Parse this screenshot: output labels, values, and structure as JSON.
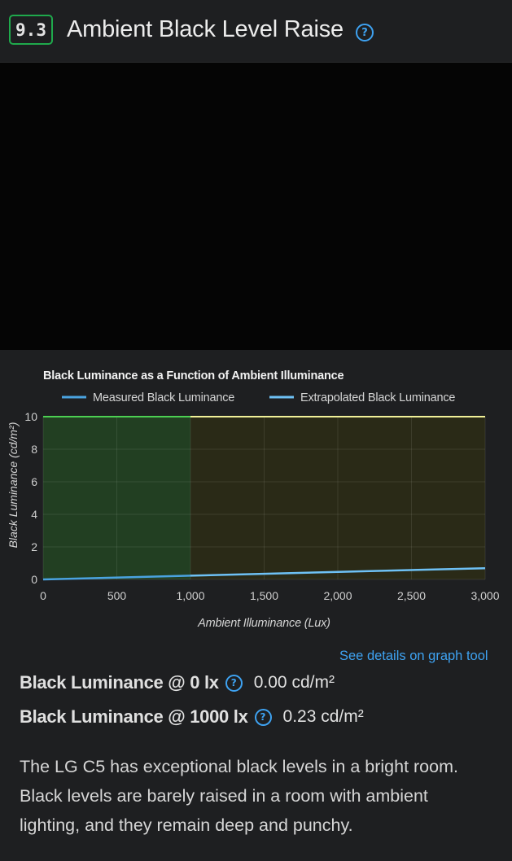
{
  "header": {
    "score": "9.3",
    "title": "Ambient Black Level Raise",
    "help_glyph": "?"
  },
  "chart_data": {
    "type": "line",
    "title": "Black Luminance as a Function of Ambient Illuminance",
    "xlabel": "Ambient Illuminance (Lux)",
    "ylabel": "Black Luminance (cd/m²)",
    "xlim": [
      0,
      3000
    ],
    "ylim": [
      0,
      10
    ],
    "x_ticks": [
      0,
      500,
      1000,
      1500,
      2000,
      2500,
      3000
    ],
    "x_tick_labels": [
      "0",
      "500",
      "1,000",
      "1,500",
      "2,000",
      "2,500",
      "3,000"
    ],
    "y_ticks": [
      0,
      2,
      4,
      6,
      8,
      10
    ],
    "y_tick_labels": [
      "0",
      "2",
      "4",
      "6",
      "8",
      "10"
    ],
    "grid": true,
    "legend_position": "top",
    "series": [
      {
        "name": "Measured Black Luminance",
        "color": "#4aa3e0",
        "x": [
          0,
          1000
        ],
        "y": [
          0.0,
          0.23
        ]
      },
      {
        "name": "Extrapolated Black Luminance",
        "color": "#6ec1f5",
        "x": [
          1000,
          3000
        ],
        "y": [
          0.23,
          0.69
        ]
      }
    ],
    "regions": [
      {
        "x_range": [
          0,
          1000
        ],
        "color": "#223f22"
      },
      {
        "x_range": [
          1000,
          3000
        ],
        "color": "#2a2a17"
      }
    ],
    "top_lines": [
      {
        "x_range": [
          0,
          1000
        ],
        "color": "#4ccf52"
      },
      {
        "x_range": [
          1000,
          3000
        ],
        "color": "#f0f098"
      }
    ]
  },
  "graph_link": "See details on graph tool",
  "stats": [
    {
      "label": "Black Luminance @ 0 lx",
      "value": "0.00 cd/m²"
    },
    {
      "label": "Black Luminance @ 1000 lx",
      "value": "0.23 cd/m²"
    }
  ],
  "description": "The LG C5 has exceptional black levels in a bright room. Black levels are barely raised in a room with ambient lighting, and they remain deep and punchy."
}
